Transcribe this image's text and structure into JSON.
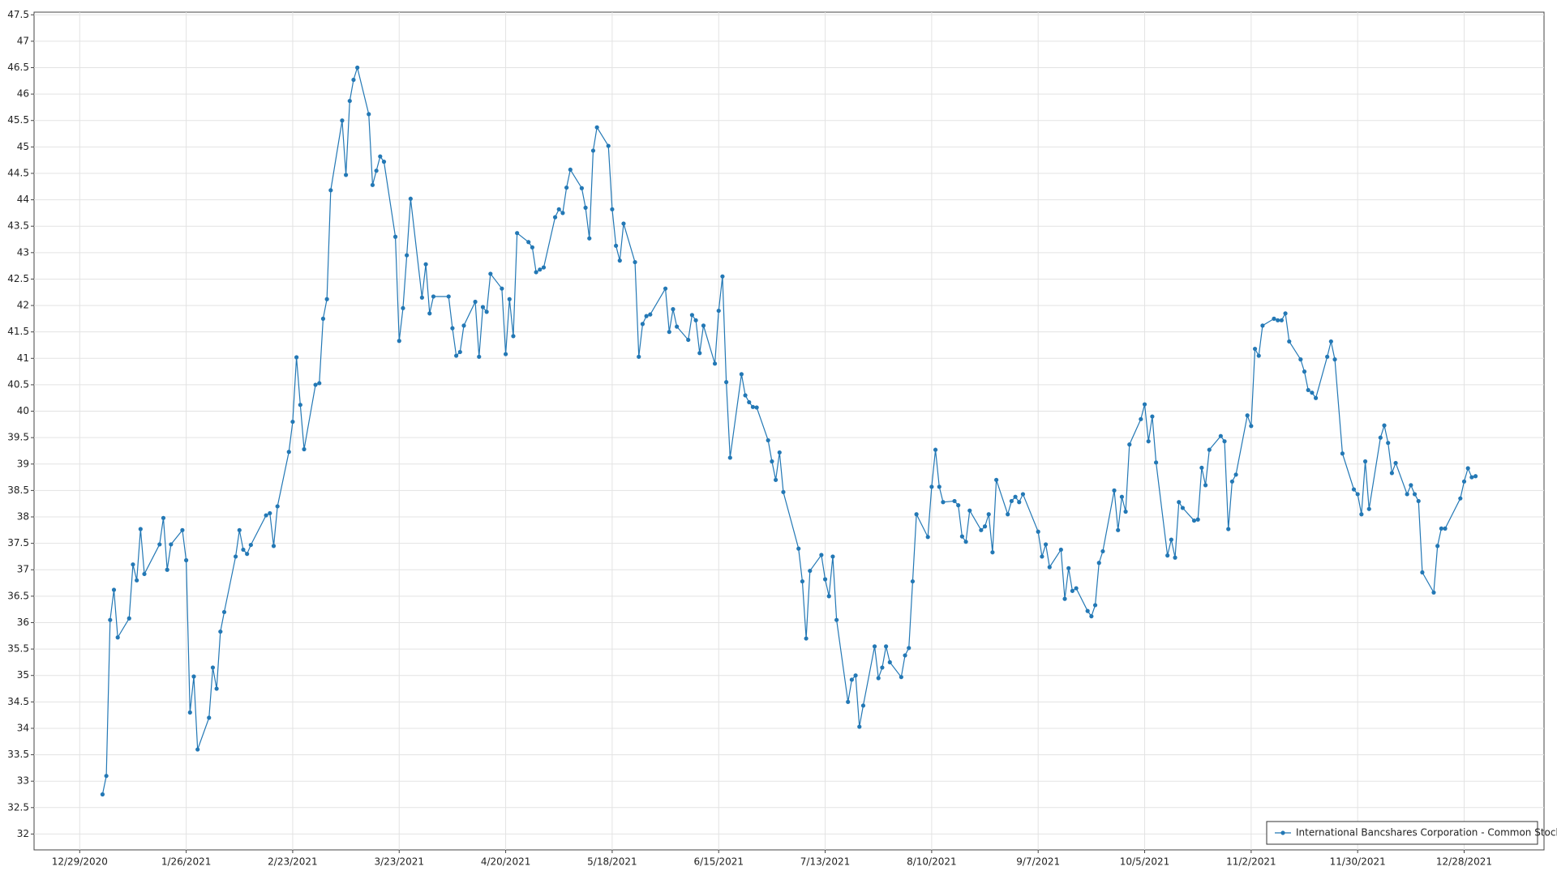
{
  "chart_data": {
    "type": "line",
    "x": [
      "1/4/2021",
      "1/5/2021",
      "1/6/2021",
      "1/7/2021",
      "1/8/2021",
      "1/11/2021",
      "1/12/2021",
      "1/13/2021",
      "1/14/2021",
      "1/15/2021",
      "1/19/2021",
      "1/20/2021",
      "1/21/2021",
      "1/22/2021",
      "1/25/2021",
      "1/26/2021",
      "1/27/2021",
      "1/28/2021",
      "1/29/2021",
      "2/1/2021",
      "2/2/2021",
      "2/3/2021",
      "2/4/2021",
      "2/5/2021",
      "2/8/2021",
      "2/9/2021",
      "2/10/2021",
      "2/11/2021",
      "2/12/2021",
      "2/16/2021",
      "2/17/2021",
      "2/18/2021",
      "2/19/2021",
      "2/22/2021",
      "2/23/2021",
      "2/24/2021",
      "2/25/2021",
      "2/26/2021",
      "3/1/2021",
      "3/2/2021",
      "3/3/2021",
      "3/4/2021",
      "3/5/2021",
      "3/8/2021",
      "3/9/2021",
      "3/10/2021",
      "3/11/2021",
      "3/12/2021",
      "3/15/2021",
      "3/16/2021",
      "3/17/2021",
      "3/18/2021",
      "3/19/2021",
      "3/22/2021",
      "3/23/2021",
      "3/24/2021",
      "3/25/2021",
      "3/26/2021",
      "3/29/2021",
      "3/30/2021",
      "3/31/2021",
      "4/1/2021",
      "4/5/2021",
      "4/6/2021",
      "4/7/2021",
      "4/8/2021",
      "4/9/2021",
      "4/12/2021",
      "4/13/2021",
      "4/14/2021",
      "4/15/2021",
      "4/16/2021",
      "4/19/2021",
      "4/20/2021",
      "4/21/2021",
      "4/22/2021",
      "4/23/2021",
      "4/26/2021",
      "4/27/2021",
      "4/28/2021",
      "4/29/2021",
      "4/30/2021",
      "5/3/2021",
      "5/4/2021",
      "5/5/2021",
      "5/6/2021",
      "5/7/2021",
      "5/10/2021",
      "5/11/2021",
      "5/12/2021",
      "5/13/2021",
      "5/14/2021",
      "5/17/2021",
      "5/18/2021",
      "5/19/2021",
      "5/20/2021",
      "5/21/2021",
      "5/24/2021",
      "5/25/2021",
      "5/26/2021",
      "5/27/2021",
      "5/28/2021",
      "6/1/2021",
      "6/2/2021",
      "6/3/2021",
      "6/4/2021",
      "6/7/2021",
      "6/8/2021",
      "6/9/2021",
      "6/10/2021",
      "6/11/2021",
      "6/14/2021",
      "6/15/2021",
      "6/16/2021",
      "6/17/2021",
      "6/18/2021",
      "6/21/2021",
      "6/22/2021",
      "6/23/2021",
      "6/24/2021",
      "6/25/2021",
      "6/28/2021",
      "6/29/2021",
      "6/30/2021",
      "7/1/2021",
      "7/2/2021",
      "7/6/2021",
      "7/7/2021",
      "7/8/2021",
      "7/9/2021",
      "7/12/2021",
      "7/13/2021",
      "7/14/2021",
      "7/15/2021",
      "7/16/2021",
      "7/19/2021",
      "7/20/2021",
      "7/21/2021",
      "7/22/2021",
      "7/23/2021",
      "7/26/2021",
      "7/27/2021",
      "7/28/2021",
      "7/29/2021",
      "7/30/2021",
      "8/2/2021",
      "8/3/2021",
      "8/4/2021",
      "8/5/2021",
      "8/6/2021",
      "8/9/2021",
      "8/10/2021",
      "8/11/2021",
      "8/12/2021",
      "8/13/2021",
      "8/16/2021",
      "8/17/2021",
      "8/18/2021",
      "8/19/2021",
      "8/20/2021",
      "8/23/2021",
      "8/24/2021",
      "8/25/2021",
      "8/26/2021",
      "8/27/2021",
      "8/30/2021",
      "8/31/2021",
      "9/1/2021",
      "9/2/2021",
      "9/3/2021",
      "9/7/2021",
      "9/8/2021",
      "9/9/2021",
      "9/10/2021",
      "9/13/2021",
      "9/14/2021",
      "9/15/2021",
      "9/16/2021",
      "9/17/2021",
      "9/20/2021",
      "9/21/2021",
      "9/22/2021",
      "9/23/2021",
      "9/24/2021",
      "9/27/2021",
      "9/28/2021",
      "9/29/2021",
      "9/30/2021",
      "10/1/2021",
      "10/4/2021",
      "10/5/2021",
      "10/6/2021",
      "10/7/2021",
      "10/8/2021",
      "10/11/2021",
      "10/12/2021",
      "10/13/2021",
      "10/14/2021",
      "10/15/2021",
      "10/18/2021",
      "10/19/2021",
      "10/20/2021",
      "10/21/2021",
      "10/22/2021",
      "10/25/2021",
      "10/26/2021",
      "10/27/2021",
      "10/28/2021",
      "10/29/2021",
      "11/1/2021",
      "11/2/2021",
      "11/3/2021",
      "11/4/2021",
      "11/5/2021",
      "11/8/2021",
      "11/9/2021",
      "11/10/2021",
      "11/11/2021",
      "11/12/2021",
      "11/15/2021",
      "11/16/2021",
      "11/17/2021",
      "11/18/2021",
      "11/19/2021",
      "11/22/2021",
      "11/23/2021",
      "11/24/2021",
      "11/26/2021",
      "11/29/2021",
      "11/30/2021",
      "12/1/2021",
      "12/2/2021",
      "12/3/2021",
      "12/6/2021",
      "12/7/2021",
      "12/8/2021",
      "12/9/2021",
      "12/10/2021",
      "12/13/2021",
      "12/14/2021",
      "12/15/2021",
      "12/16/2021",
      "12/17/2021",
      "12/20/2021",
      "12/21/2021",
      "12/22/2021",
      "12/23/2021",
      "12/27/2021",
      "12/28/2021",
      "12/29/2021",
      "12/30/2021",
      "12/31/2021"
    ],
    "series": [
      {
        "name": "International Bancshares Corporation - Common Stock",
        "color": "#2378b5",
        "values": [
          32.75,
          33.1,
          36.05,
          36.62,
          35.72,
          36.08,
          37.1,
          36.8,
          37.77,
          36.92,
          37.48,
          37.98,
          37.0,
          37.48,
          37.75,
          37.18,
          34.3,
          34.98,
          33.6,
          34.2,
          35.15,
          34.75,
          35.83,
          36.2,
          37.25,
          37.75,
          37.38,
          37.3,
          37.47,
          38.03,
          38.07,
          37.45,
          38.2,
          39.23,
          39.8,
          41.02,
          40.12,
          39.28,
          40.5,
          40.53,
          41.75,
          42.12,
          44.18,
          45.5,
          44.47,
          45.87,
          46.27,
          46.5,
          45.62,
          44.28,
          44.55,
          44.82,
          44.72,
          43.3,
          41.33,
          41.95,
          42.95,
          44.02,
          42.15,
          42.78,
          41.85,
          42.17,
          42.17,
          41.57,
          41.05,
          41.12,
          41.62,
          42.07,
          41.03,
          41.97,
          41.88,
          42.6,
          42.32,
          41.08,
          42.12,
          41.42,
          43.37,
          43.2,
          43.1,
          42.63,
          42.68,
          42.72,
          43.67,
          43.82,
          43.75,
          44.23,
          44.57,
          44.22,
          43.85,
          43.27,
          44.93,
          45.37,
          45.02,
          43.82,
          43.13,
          42.85,
          43.55,
          42.82,
          41.03,
          41.65,
          41.8,
          41.83,
          42.32,
          41.5,
          41.93,
          41.6,
          41.35,
          41.82,
          41.72,
          41.1,
          41.62,
          40.9,
          41.9,
          42.55,
          40.55,
          39.12,
          40.7,
          40.3,
          40.17,
          40.08,
          40.07,
          39.45,
          39.05,
          38.7,
          39.22,
          38.47,
          37.4,
          36.78,
          35.7,
          36.98,
          37.28,
          36.82,
          36.5,
          37.25,
          36.05,
          34.5,
          34.92,
          35.0,
          34.03,
          34.43,
          35.55,
          34.95,
          35.15,
          35.55,
          35.25,
          34.97,
          35.38,
          35.52,
          36.78,
          38.05,
          37.62,
          38.57,
          39.27,
          38.57,
          38.28,
          38.3,
          38.22,
          37.63,
          37.53,
          38.12,
          37.75,
          37.82,
          38.05,
          37.33,
          38.7,
          38.05,
          38.3,
          38.38,
          38.28,
          38.43,
          37.72,
          37.25,
          37.48,
          37.05,
          37.38,
          36.45,
          37.03,
          36.6,
          36.65,
          36.22,
          36.12,
          36.33,
          37.13,
          37.35,
          38.5,
          37.75,
          38.38,
          38.1,
          39.37,
          39.85,
          40.13,
          39.43,
          39.9,
          39.03,
          37.27,
          37.57,
          37.23,
          38.28,
          38.17,
          37.93,
          37.95,
          38.93,
          38.6,
          39.27,
          39.53,
          39.43,
          37.77,
          38.67,
          38.8,
          39.92,
          39.72,
          41.18,
          41.05,
          41.62,
          41.75,
          41.72,
          41.72,
          41.85,
          41.32,
          40.98,
          40.75,
          40.4,
          40.35,
          40.25,
          41.03,
          41.32,
          40.98,
          39.2,
          38.52,
          38.43,
          38.05,
          39.05,
          38.15,
          39.5,
          39.73,
          39.4,
          38.83,
          39.02,
          38.43,
          38.6,
          38.43,
          38.3,
          36.95,
          36.57,
          37.45,
          37.78,
          37.78,
          38.35,
          38.67,
          38.92,
          38.75,
          38.77
        ]
      }
    ],
    "xlim": [
      "12/17/2020",
      "1/18/2022"
    ],
    "xticks": [
      "12/29/2020",
      "1/26/2021",
      "2/23/2021",
      "3/23/2021",
      "4/20/2021",
      "5/18/2021",
      "6/15/2021",
      "7/13/2021",
      "8/10/2021",
      "9/7/2021",
      "10/5/2021",
      "11/2/2021",
      "11/30/2021",
      "12/28/2021"
    ],
    "ylim": [
      31.7,
      47.55
    ],
    "yticks": [
      32,
      32.5,
      33,
      33.5,
      34,
      34.5,
      35,
      35.5,
      36,
      36.5,
      37,
      37.5,
      38,
      38.5,
      39,
      39.5,
      40,
      40.5,
      41,
      41.5,
      42,
      42.5,
      43,
      43.5,
      44,
      44.5,
      45,
      45.5,
      46,
      46.5,
      47,
      47.5
    ],
    "grid": true,
    "legend": "lower right"
  }
}
